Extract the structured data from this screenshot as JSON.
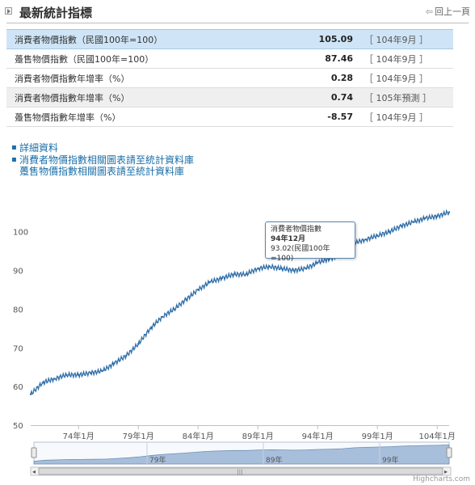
{
  "header": {
    "title": "最新統計指標",
    "prev_label": "回上一頁"
  },
  "stats": [
    {
      "name": "消費者物價指數（民國100年=100）",
      "value": "105.09",
      "period": "［ 104年9月 ］"
    },
    {
      "name": "躉售物價指數（民國100年=100）",
      "value": "87.46",
      "period": "［ 104年9月 ］"
    },
    {
      "name": "消費者物價指數年增率（%）",
      "value": "0.28",
      "period": "［ 104年9月 ］"
    },
    {
      "name": "消費者物價指數年增率（%）",
      "value": "0.74",
      "period": "［ 105年預測 ］"
    },
    {
      "name": "躉售物價指數年增率（%）",
      "value": "-8.57",
      "period": "［ 104年9月 ］"
    }
  ],
  "links": [
    {
      "text": "詳細資料"
    },
    {
      "text": "消費者物價指數相關圖表請至統計資料庫",
      "text2": "躉售物價指數相關圖表請至統計資料庫"
    }
  ],
  "tooltip": {
    "series": "消費者物價指數",
    "date": "94年12月",
    "value": "93.02(民國100年=100)"
  },
  "credits": "Highcharts.com",
  "colors": {
    "line": "#2e6da8",
    "navigator_fill": "#a8bfdc",
    "highlight_row": "#cfe5f7"
  },
  "chart_data": {
    "type": "line",
    "series": [
      {
        "x": [
          "70年1月",
          "71年1月",
          "72年1月",
          "73年1月",
          "74年1月",
          "75年1月",
          "76年1月",
          "77年1月",
          "78年1月",
          "79年1月",
          "80年1月",
          "81年1月",
          "82年1月",
          "83年1月",
          "84年1月",
          "85年1月",
          "86年1月",
          "87年1月",
          "88年1月",
          "89年1月",
          "90年1月",
          "91年1月",
          "92年1月",
          "93年1月",
          "94年1月",
          "94年12月",
          "96年1月",
          "97年1月",
          "98年1月",
          "99年1月",
          "100年1月",
          "101年1月",
          "102年1月",
          "103年1月",
          "104年1月",
          "104年9月"
        ],
        "values": [
          58,
          61,
          62,
          63,
          63,
          63.5,
          64,
          66,
          68,
          71,
          75,
          78,
          80,
          82.5,
          85,
          87,
          88,
          89,
          89,
          90.5,
          91,
          90.5,
          90,
          90.5,
          92,
          93.02,
          94,
          97,
          98,
          99,
          100,
          101.5,
          102.5,
          103.5,
          104,
          105.09
        ]
      }
    ],
    "y_ticks": [
      50,
      60,
      70,
      80,
      90,
      100
    ],
    "ylim": [
      50,
      106
    ],
    "x_ticks": [
      "74年1月",
      "79年1月",
      "84年1月",
      "89年1月",
      "94年1月",
      "99年1月",
      "104年1月"
    ],
    "navigator_ticks": [
      "79年",
      "89年",
      "99年"
    ],
    "grid": "none",
    "legend": "none"
  }
}
